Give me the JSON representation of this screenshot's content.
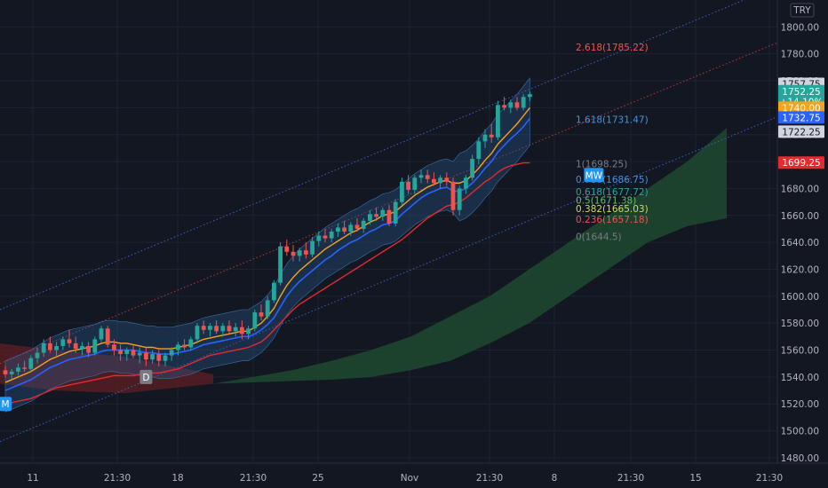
{
  "currency": "TRY",
  "colors": {
    "background": "#131722",
    "grid": "#1e2330",
    "axis_text": "#b2b5be",
    "bull": "#26a69a",
    "bear": "#ef5350",
    "ema_fast": "#2962ff",
    "ema_slow": "#f7a21b",
    "red_line": "#e5292e",
    "band_fill": "#2a5a8c",
    "cloud_green": "#1e4a30",
    "cloud_red": "#5a1f24"
  },
  "chart_data": {
    "type": "candlestick",
    "ylim": [
      1476,
      1820
    ],
    "y_ticks": [
      "1800.00",
      "1780.00",
      "1760.00",
      "1740.00",
      "1720.00",
      "1700.00",
      "1680.00",
      "1660.00",
      "1640.00",
      "1620.00",
      "1600.00",
      "1580.00",
      "1560.00",
      "1540.00",
      "1520.00",
      "1500.00",
      "1480.00"
    ],
    "x_ticks": [
      "11",
      "21:30",
      "18",
      "21:30",
      "25",
      "Nov",
      "21:30",
      "8",
      "21:30",
      "15",
      "21:30"
    ],
    "fib_levels": [
      {
        "label": "2.618(1785.22)",
        "value": 1785.22,
        "color": "#f05350"
      },
      {
        "label": "1.618(1731.47)",
        "value": 1731.47,
        "color": "#4a90e2"
      },
      {
        "label": "1(1698.25)",
        "value": 1698.25,
        "color": "#787b86"
      },
      {
        "label": "0.786(1686.75)",
        "value": 1686.75,
        "color": "#4a90e2"
      },
      {
        "label": "0.618(1677.72)",
        "value": 1677.72,
        "color": "#26a69a"
      },
      {
        "label": "0.5(1671.38)",
        "value": 1671.38,
        "color": "#66bb6a"
      },
      {
        "label": "0.382(1665.03)",
        "value": 1665.03,
        "color": "#d4d75a"
      },
      {
        "label": "0.236(1657.18)",
        "value": 1657.18,
        "color": "#f05350"
      },
      {
        "label": "0(1644.5)",
        "value": 1644.5,
        "color": "#787b86"
      }
    ],
    "price_tags": [
      {
        "label": "1757.75",
        "value": 1757.75,
        "bg": "#d1d4dc",
        "fg": "#131722"
      },
      {
        "label": "1752.25",
        "value": 1752.25,
        "bg": "#26a69a",
        "fg": "#ffffff"
      },
      {
        "label": "+14.10%",
        "value": 1744.5,
        "bg": "#26a69a",
        "fg": "#ffffff"
      },
      {
        "label": "1740.00",
        "value": 1740.0,
        "bg": "#f7a21b",
        "fg": "#ffffff"
      },
      {
        "label": "1732.75",
        "value": 1732.75,
        "bg": "#2962ff",
        "fg": "#ffffff"
      },
      {
        "label": "1722.25",
        "value": 1722.25,
        "bg": "#d1d4dc",
        "fg": "#131722"
      },
      {
        "label": "1699.25",
        "value": 1699.25,
        "bg": "#e5292e",
        "fg": "#ffffff"
      }
    ],
    "markers": [
      {
        "label": "D",
        "index": 22,
        "value": 1540
      },
      {
        "label": "MW",
        "index": 92,
        "value": 1690
      },
      {
        "label": "M",
        "index": 0,
        "value": 1520
      }
    ],
    "candles": [
      [
        1545,
        1548,
        1540,
        1542
      ],
      [
        1542,
        1546,
        1538,
        1544
      ],
      [
        1544,
        1550,
        1541,
        1547
      ],
      [
        1547,
        1552,
        1544,
        1546
      ],
      [
        1546,
        1556,
        1544,
        1554
      ],
      [
        1554,
        1562,
        1550,
        1558
      ],
      [
        1558,
        1568,
        1555,
        1565
      ],
      [
        1565,
        1570,
        1558,
        1560
      ],
      [
        1560,
        1566,
        1555,
        1563
      ],
      [
        1563,
        1570,
        1560,
        1568
      ],
      [
        1568,
        1575,
        1562,
        1565
      ],
      [
        1565,
        1570,
        1558,
        1561
      ],
      [
        1561,
        1566,
        1556,
        1563
      ],
      [
        1563,
        1566,
        1555,
        1558
      ],
      [
        1558,
        1570,
        1556,
        1568
      ],
      [
        1568,
        1578,
        1566,
        1576
      ],
      [
        1576,
        1578,
        1562,
        1564
      ],
      [
        1564,
        1568,
        1556,
        1560
      ],
      [
        1560,
        1564,
        1552,
        1557
      ],
      [
        1557,
        1562,
        1552,
        1560
      ],
      [
        1560,
        1564,
        1554,
        1556
      ],
      [
        1556,
        1562,
        1550,
        1558
      ],
      [
        1558,
        1562,
        1548,
        1553
      ],
      [
        1553,
        1560,
        1550,
        1557
      ],
      [
        1557,
        1560,
        1548,
        1552
      ],
      [
        1552,
        1558,
        1548,
        1556
      ],
      [
        1556,
        1562,
        1552,
        1560
      ],
      [
        1560,
        1566,
        1556,
        1564
      ],
      [
        1564,
        1568,
        1560,
        1562
      ],
      [
        1562,
        1570,
        1560,
        1568
      ],
      [
        1568,
        1580,
        1565,
        1578
      ],
      [
        1578,
        1582,
        1572,
        1575
      ],
      [
        1575,
        1580,
        1570,
        1578
      ],
      [
        1578,
        1582,
        1572,
        1574
      ],
      [
        1574,
        1580,
        1570,
        1578
      ],
      [
        1578,
        1582,
        1572,
        1574
      ],
      [
        1574,
        1580,
        1570,
        1577
      ],
      [
        1577,
        1582,
        1568,
        1572
      ],
      [
        1572,
        1578,
        1568,
        1576
      ],
      [
        1576,
        1590,
        1574,
        1588
      ],
      [
        1588,
        1594,
        1582,
        1585
      ],
      [
        1585,
        1600,
        1583,
        1597
      ],
      [
        1597,
        1612,
        1595,
        1610
      ],
      [
        1610,
        1640,
        1608,
        1637
      ],
      [
        1637,
        1642,
        1630,
        1633
      ],
      [
        1633,
        1638,
        1626,
        1630
      ],
      [
        1630,
        1636,
        1626,
        1634
      ],
      [
        1634,
        1640,
        1628,
        1631
      ],
      [
        1631,
        1644,
        1629,
        1641
      ],
      [
        1641,
        1648,
        1637,
        1645
      ],
      [
        1645,
        1650,
        1640,
        1643
      ],
      [
        1643,
        1650,
        1640,
        1648
      ],
      [
        1648,
        1654,
        1644,
        1651
      ],
      [
        1651,
        1656,
        1646,
        1648
      ],
      [
        1648,
        1655,
        1645,
        1653
      ],
      [
        1653,
        1658,
        1648,
        1650
      ],
      [
        1650,
        1658,
        1647,
        1656
      ],
      [
        1656,
        1664,
        1653,
        1661
      ],
      [
        1661,
        1666,
        1656,
        1659
      ],
      [
        1659,
        1666,
        1656,
        1664
      ],
      [
        1664,
        1668,
        1652,
        1654
      ],
      [
        1654,
        1672,
        1652,
        1670
      ],
      [
        1670,
        1688,
        1668,
        1685
      ],
      [
        1685,
        1690,
        1676,
        1679
      ],
      [
        1679,
        1690,
        1676,
        1688
      ],
      [
        1688,
        1694,
        1684,
        1690
      ],
      [
        1690,
        1694,
        1684,
        1687
      ],
      [
        1687,
        1692,
        1682,
        1684
      ],
      [
        1684,
        1690,
        1680,
        1688
      ],
      [
        1688,
        1692,
        1682,
        1685
      ],
      [
        1685,
        1688,
        1660,
        1664
      ],
      [
        1664,
        1682,
        1660,
        1680
      ],
      [
        1680,
        1690,
        1676,
        1688
      ],
      [
        1688,
        1705,
        1686,
        1702
      ],
      [
        1702,
        1718,
        1698,
        1715
      ],
      [
        1715,
        1724,
        1710,
        1720
      ],
      [
        1720,
        1728,
        1714,
        1718
      ],
      [
        1718,
        1745,
        1716,
        1742
      ],
      [
        1742,
        1748,
        1738,
        1740
      ],
      [
        1740,
        1746,
        1736,
        1744
      ],
      [
        1744,
        1748,
        1738,
        1740
      ],
      [
        1740,
        1750,
        1738,
        1748
      ],
      [
        1748,
        1752,
        1745,
        1750
      ]
    ],
    "ema_fast": [
      1530,
      1532,
      1534,
      1536,
      1538,
      1541,
      1544,
      1547,
      1549,
      1551,
      1553,
      1554,
      1555,
      1556,
      1557,
      1559,
      1560,
      1560,
      1560,
      1560,
      1560,
      1559,
      1558,
      1558,
      1557,
      1557,
      1557,
      1558,
      1559,
      1560,
      1562,
      1564,
      1565,
      1566,
      1567,
      1568,
      1569,
      1570,
      1570,
      1572,
      1575,
      1579,
      1584,
      1592,
      1600,
      1606,
      1611,
      1615,
      1619,
      1623,
      1627,
      1630,
      1634,
      1637,
      1640,
      1642,
      1645,
      1648,
      1650,
      1653,
      1654,
      1656,
      1661,
      1665,
      1669,
      1673,
      1676,
      1678,
      1680,
      1681,
      1678,
      1678,
      1680,
      1684,
      1689,
      1695,
      1700,
      1707,
      1712,
      1717,
      1721,
      1726,
      1732
    ],
    "ema_slow": [
      1536,
      1538,
      1540,
      1542,
      1544,
      1547,
      1550,
      1553,
      1555,
      1557,
      1559,
      1560,
      1561,
      1562,
      1563,
      1565,
      1566,
      1566,
      1565,
      1565,
      1564,
      1563,
      1562,
      1562,
      1561,
      1561,
      1561,
      1562,
      1563,
      1564,
      1566,
      1568,
      1569,
      1570,
      1571,
      1572,
      1573,
      1574,
      1574,
      1577,
      1580,
      1585,
      1591,
      1600,
      1608,
      1614,
      1619,
      1623,
      1627,
      1631,
      1635,
      1638,
      1641,
      1644,
      1647,
      1649,
      1652,
      1655,
      1657,
      1660,
      1661,
      1663,
      1667,
      1671,
      1675,
      1678,
      1681,
      1683,
      1685,
      1686,
      1684,
      1684,
      1686,
      1690,
      1695,
      1701,
      1706,
      1713,
      1718,
      1723,
      1728,
      1734,
      1740
    ],
    "red_line": [
      1520,
      1521,
      1522,
      1523,
      1524,
      1526,
      1528,
      1530,
      1532,
      1533,
      1534,
      1535,
      1536,
      1537,
      1538,
      1539,
      1540,
      1541,
      1541,
      1541,
      1541,
      1542,
      1542,
      1543,
      1543,
      1544,
      1545,
      1546,
      1548,
      1550,
      1552,
      1554,
      1556,
      1557,
      1558,
      1559,
      1560,
      1561,
      1562,
      1564,
      1566,
      1570,
      1575,
      1580,
      1585,
      1590,
      1594,
      1597,
      1600,
      1603,
      1606,
      1609,
      1612,
      1615,
      1618,
      1621,
      1624,
      1627,
      1630,
      1633,
      1636,
      1639,
      1642,
      1646,
      1650,
      1654,
      1658,
      1661,
      1664,
      1667,
      1668,
      1670,
      1673,
      1677,
      1681,
      1685,
      1688,
      1692,
      1695,
      1697,
      1698,
      1699,
      1699
    ],
    "cloud_green_top": [
      1535,
      1540,
      1545,
      1552,
      1560,
      1570,
      1585,
      1600,
      1620,
      1640,
      1660,
      1680,
      1700,
      1725
    ],
    "cloud_green_bottom": [
      1535,
      1536,
      1537,
      1538,
      1540,
      1545,
      1552,
      1565,
      1580,
      1600,
      1620,
      1640,
      1652,
      1658
    ]
  }
}
